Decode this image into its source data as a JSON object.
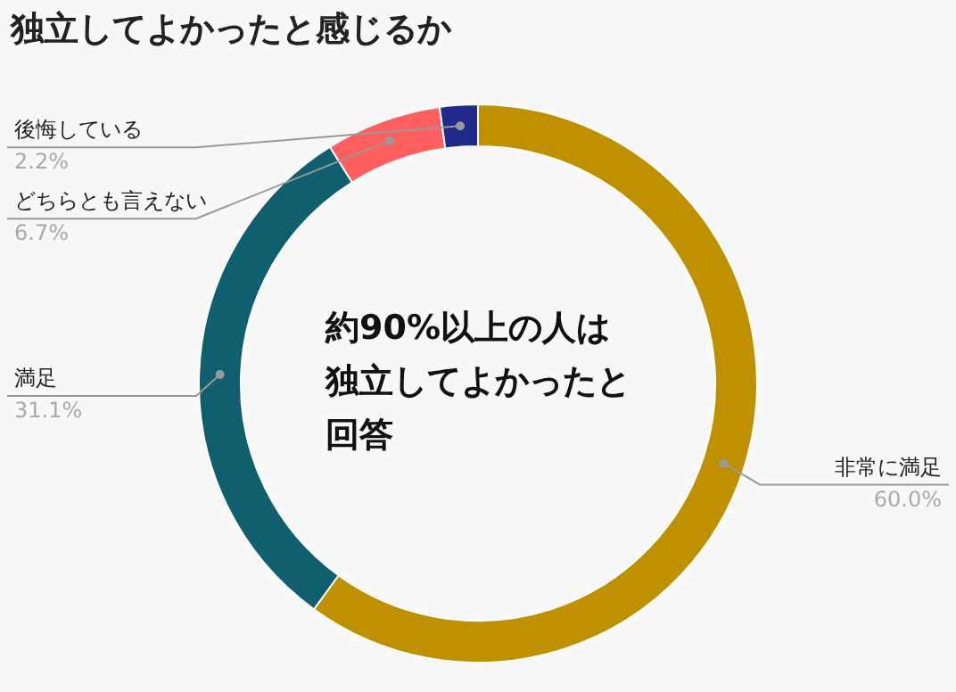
{
  "chart_data": {
    "type": "donut",
    "title": "独立してよかったと感じるか",
    "categories": [
      "非常に満足",
      "満足",
      "どちらとも言えない",
      "後悔している"
    ],
    "values": [
      60.0,
      31.1,
      6.7,
      2.2
    ],
    "value_labels": [
      "60.0%",
      "31.1%",
      "6.7%",
      "2.2%"
    ],
    "colors": [
      "#bf9000",
      "#0f5f6e",
      "#ff5f5f",
      "#1f2a8a"
    ],
    "annotations": [
      "約90%以上の人は",
      "独立してよかったと",
      "回答"
    ],
    "legend": false
  }
}
